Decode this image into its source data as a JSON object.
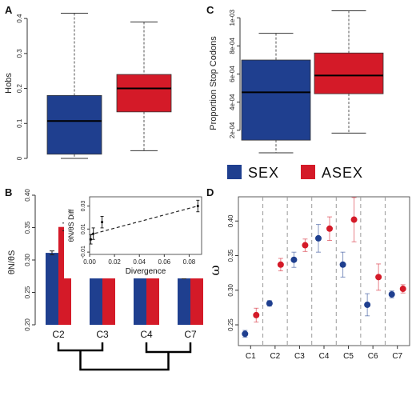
{
  "colors": {
    "sex": "#1f3f8f",
    "asex": "#d41a28",
    "inset_point": "#000000"
  },
  "legend": {
    "sex_label": "SEX",
    "asex_label": "ASEX"
  },
  "chart_data": [
    {
      "panel": "A",
      "type": "box",
      "ylabel": "Hobs",
      "ylim": [
        0,
        0.43
      ],
      "yticks": [
        "0",
        "0.1",
        "0.2",
        "0.3",
        "0.4"
      ],
      "series": [
        {
          "name": "SEX",
          "min": 0.0,
          "q1": 0.012,
          "median": 0.107,
          "q3": 0.18,
          "max": 0.415
        },
        {
          "name": "ASEX",
          "min": 0.022,
          "q1": 0.133,
          "median": 0.2,
          "q3": 0.24,
          "max": 0.39
        }
      ]
    },
    {
      "panel": "C",
      "type": "box",
      "ylabel": "Proportion Stop Codons",
      "ylim": [
        0,
        0.00107
      ],
      "yticks": [
        "2e-04",
        "4e-04",
        "6e-04",
        "8e-04",
        "1e-03"
      ],
      "series": [
        {
          "name": "SEX",
          "min": 4e-05,
          "q1": 0.00013,
          "median": 0.00047,
          "q3": 0.0007,
          "max": 0.00089
        },
        {
          "name": "ASEX",
          "min": 0.00018,
          "q1": 0.00046,
          "median": 0.00059,
          "q3": 0.00075,
          "max": 0.00105
        }
      ]
    },
    {
      "panel": "B",
      "type": "bar",
      "ylabel": "θN/θS",
      "ylim": [
        0.2,
        0.4
      ],
      "yticks": [
        "0.20",
        "0.25",
        "0.30",
        "0.35",
        "0.40"
      ],
      "categories": [
        "C2",
        "C3",
        "C4",
        "C7"
      ],
      "series": [
        {
          "name": "SEX",
          "values": [
            0.311,
            0.277,
            0.287,
            0.274
          ],
          "err": [
            0.003,
            0.004,
            0.006,
            0.003
          ]
        },
        {
          "name": "ASEX",
          "values": [
            0.351,
            0.293,
            0.288,
            0.281
          ],
          "err": [
            0.006,
            0.004,
            0.005,
            0.003
          ]
        }
      ]
    },
    {
      "panel": "B-inset",
      "type": "scatter",
      "xlabel": "Divergence",
      "ylabel": "θN/θS Diff",
      "xlim": [
        0,
        0.09
      ],
      "ylim": [
        -0.012,
        0.038
      ],
      "xticks": [
        "0.00",
        "0.02",
        "0.04",
        "0.06",
        "0.08"
      ],
      "yticks": [
        "-0.01",
        "0.01",
        "0.03"
      ],
      "points": [
        {
          "x": 0.001,
          "y": 0.001,
          "err": 0.004
        },
        {
          "x": 0.003,
          "y": 0.006,
          "err": 0.005
        },
        {
          "x": 0.01,
          "y": 0.016,
          "err": 0.005
        },
        {
          "x": 0.087,
          "y": 0.03,
          "err": 0.005
        }
      ],
      "trend": [
        [
          0.0,
          0.005
        ],
        [
          0.087,
          0.03
        ]
      ]
    },
    {
      "panel": "D",
      "type": "scatter",
      "ylabel": "ω",
      "ylim": [
        0.22,
        0.435
      ],
      "yticks": [
        "0.25",
        "0.30",
        "0.35",
        "0.40"
      ],
      "categories": [
        "C1",
        "C2",
        "C3",
        "C4",
        "C5",
        "C6",
        "C7"
      ],
      "series": [
        {
          "name": "SEX",
          "values": [
            0.237,
            0.281,
            0.344,
            0.375,
            0.337,
            0.279,
            0.294
          ],
          "err": [
            0.005,
            0.004,
            0.011,
            0.02,
            0.018,
            0.016,
            0.005
          ]
        },
        {
          "name": "ASEX",
          "values": [
            0.264,
            0.337,
            0.365,
            0.389,
            0.402,
            0.319,
            0.302
          ],
          "err": [
            0.01,
            0.009,
            0.009,
            0.017,
            0.032,
            0.019,
            0.006
          ]
        }
      ]
    }
  ],
  "panel_labels": {
    "a": "A",
    "b": "B",
    "c": "C",
    "d": "D"
  }
}
